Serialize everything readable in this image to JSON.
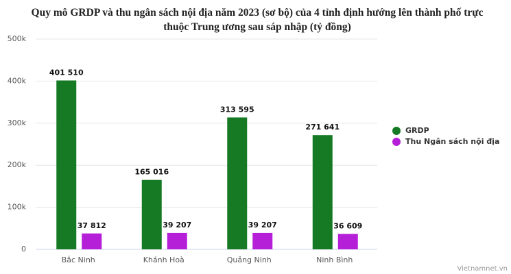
{
  "chart_data": {
    "type": "bar",
    "title": "Quy mô GRDP và thu ngân sách nội địa năm 2023 (sơ bộ) của 4 tỉnh định hướng lên thành phố trực thuộc Trung ương sau sáp nhập (tỷ đồng)",
    "categories": [
      "Bắc Ninh",
      "Khánh Hoà",
      "Quảng Ninh",
      "Ninh Bình"
    ],
    "series": [
      {
        "name": "GRDP",
        "color": "#167a24",
        "values": [
          401510,
          165016,
          313595,
          271641
        ],
        "value_labels": [
          "401 510",
          "165 016",
          "313 595",
          "271 641"
        ]
      },
      {
        "name": "Thu Ngân sách nội địa",
        "color": "#b51fd8",
        "values": [
          37812,
          39207,
          39207,
          36609
        ],
        "value_labels": [
          "37 812",
          "39 207",
          "39 207",
          "36 609"
        ]
      }
    ],
    "ylim": [
      0,
      500000
    ],
    "yticks": [
      0,
      {
        "value": 100000,
        "label": "100k"
      },
      {
        "value": 200000,
        "label": "200k"
      },
      {
        "value": 300000,
        "label": "300k"
      },
      {
        "value": 400000,
        "label": "400k"
      },
      {
        "value": 500000,
        "label": "500k"
      }
    ],
    "grid": true,
    "legend": "right",
    "source": "Vietnamnet.vn"
  }
}
